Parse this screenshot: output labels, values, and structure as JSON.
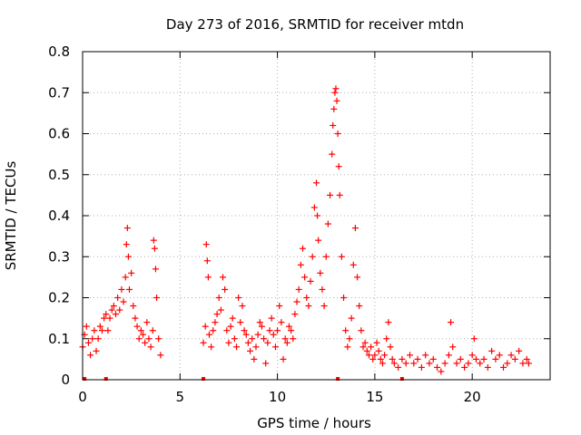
{
  "chart_data": {
    "type": "scatter",
    "title": "Day 273 of 2016, SRMTID for receiver mtdn",
    "xlabel": "GPS time / hours",
    "ylabel": "SRMTID / TECUs",
    "xlim": [
      0,
      24
    ],
    "ylim": [
      0,
      0.8
    ],
    "xticks": [
      0,
      5,
      10,
      15,
      20
    ],
    "yticks": [
      0,
      0.1,
      0.2,
      0.3,
      0.4,
      0.5,
      0.6,
      0.7,
      0.8
    ],
    "xtick_labels": [
      "0",
      "5",
      "10",
      "15",
      "20"
    ],
    "ytick_labels": [
      "0",
      "0.1",
      "0.2",
      "0.3",
      "0.4",
      "0.5",
      "0.6",
      "0.7",
      "0.8"
    ],
    "grid": true,
    "marker": "+",
    "marker_color": "#ff0000",
    "series": [
      {
        "name": "SRMTID",
        "points": [
          [
            0.0,
            0.08
          ],
          [
            0.1,
            0.11
          ],
          [
            0.2,
            0.13
          ],
          [
            0.3,
            0.09
          ],
          [
            0.4,
            0.06
          ],
          [
            0.5,
            0.1
          ],
          [
            0.6,
            0.12
          ],
          [
            0.7,
            0.07
          ],
          [
            0.8,
            0.1
          ],
          [
            0.9,
            0.13
          ],
          [
            1.0,
            0.12
          ],
          [
            1.1,
            0.15
          ],
          [
            1.2,
            0.16
          ],
          [
            1.3,
            0.12
          ],
          [
            1.4,
            0.15
          ],
          [
            1.5,
            0.17
          ],
          [
            1.6,
            0.18
          ],
          [
            1.7,
            0.16
          ],
          [
            1.8,
            0.2
          ],
          [
            1.9,
            0.17
          ],
          [
            2.0,
            0.22
          ],
          [
            2.1,
            0.19
          ],
          [
            2.2,
            0.25
          ],
          [
            2.25,
            0.33
          ],
          [
            2.3,
            0.37
          ],
          [
            2.35,
            0.3
          ],
          [
            2.4,
            0.22
          ],
          [
            2.5,
            0.26
          ],
          [
            2.6,
            0.18
          ],
          [
            2.7,
            0.15
          ],
          [
            2.8,
            0.13
          ],
          [
            2.9,
            0.1
          ],
          [
            3.0,
            0.12
          ],
          [
            3.1,
            0.11
          ],
          [
            3.2,
            0.09
          ],
          [
            3.3,
            0.14
          ],
          [
            3.4,
            0.1
          ],
          [
            3.5,
            0.08
          ],
          [
            3.6,
            0.12
          ],
          [
            3.65,
            0.34
          ],
          [
            3.7,
            0.32
          ],
          [
            3.75,
            0.27
          ],
          [
            3.8,
            0.2
          ],
          [
            3.9,
            0.1
          ],
          [
            4.0,
            0.06
          ],
          [
            6.2,
            0.09
          ],
          [
            6.3,
            0.13
          ],
          [
            6.35,
            0.33
          ],
          [
            6.4,
            0.29
          ],
          [
            6.45,
            0.25
          ],
          [
            6.5,
            0.11
          ],
          [
            6.6,
            0.08
          ],
          [
            6.7,
            0.12
          ],
          [
            6.8,
            0.14
          ],
          [
            6.9,
            0.16
          ],
          [
            7.0,
            0.2
          ],
          [
            7.1,
            0.17
          ],
          [
            7.2,
            0.25
          ],
          [
            7.3,
            0.22
          ],
          [
            7.4,
            0.12
          ],
          [
            7.5,
            0.09
          ],
          [
            7.6,
            0.13
          ],
          [
            7.7,
            0.15
          ],
          [
            7.8,
            0.1
          ],
          [
            7.9,
            0.08
          ],
          [
            8.0,
            0.2
          ],
          [
            8.1,
            0.14
          ],
          [
            8.2,
            0.18
          ],
          [
            8.3,
            0.12
          ],
          [
            8.4,
            0.11
          ],
          [
            8.5,
            0.09
          ],
          [
            8.6,
            0.07
          ],
          [
            8.7,
            0.1
          ],
          [
            8.8,
            0.05
          ],
          [
            8.9,
            0.08
          ],
          [
            9.0,
            0.11
          ],
          [
            9.1,
            0.14
          ],
          [
            9.2,
            0.13
          ],
          [
            9.3,
            0.1
          ],
          [
            9.4,
            0.04
          ],
          [
            9.5,
            0.09
          ],
          [
            9.6,
            0.12
          ],
          [
            9.7,
            0.15
          ],
          [
            9.8,
            0.11
          ],
          [
            9.9,
            0.08
          ],
          [
            10.0,
            0.12
          ],
          [
            10.1,
            0.18
          ],
          [
            10.2,
            0.14
          ],
          [
            10.3,
            0.05
          ],
          [
            10.4,
            0.1
          ],
          [
            10.5,
            0.09
          ],
          [
            10.6,
            0.13
          ],
          [
            10.7,
            0.12
          ],
          [
            10.8,
            0.1
          ],
          [
            10.9,
            0.16
          ],
          [
            11.0,
            0.19
          ],
          [
            11.1,
            0.22
          ],
          [
            11.2,
            0.28
          ],
          [
            11.3,
            0.32
          ],
          [
            11.4,
            0.25
          ],
          [
            11.5,
            0.2
          ],
          [
            11.6,
            0.18
          ],
          [
            11.7,
            0.24
          ],
          [
            11.8,
            0.3
          ],
          [
            11.9,
            0.42
          ],
          [
            12.0,
            0.48
          ],
          [
            12.05,
            0.4
          ],
          [
            12.1,
            0.34
          ],
          [
            12.2,
            0.26
          ],
          [
            12.3,
            0.22
          ],
          [
            12.4,
            0.18
          ],
          [
            12.5,
            0.3
          ],
          [
            12.6,
            0.38
          ],
          [
            12.7,
            0.45
          ],
          [
            12.8,
            0.55
          ],
          [
            12.85,
            0.62
          ],
          [
            12.9,
            0.66
          ],
          [
            12.95,
            0.7
          ],
          [
            13.0,
            0.71
          ],
          [
            13.05,
            0.68
          ],
          [
            13.1,
            0.6
          ],
          [
            13.15,
            0.52
          ],
          [
            13.2,
            0.45
          ],
          [
            13.3,
            0.3
          ],
          [
            13.4,
            0.2
          ],
          [
            13.5,
            0.12
          ],
          [
            13.6,
            0.08
          ],
          [
            13.7,
            0.1
          ],
          [
            13.8,
            0.15
          ],
          [
            13.9,
            0.28
          ],
          [
            14.0,
            0.37
          ],
          [
            14.1,
            0.25
          ],
          [
            14.2,
            0.18
          ],
          [
            14.3,
            0.12
          ],
          [
            14.4,
            0.08
          ],
          [
            14.5,
            0.09
          ],
          [
            14.6,
            0.07
          ],
          [
            14.7,
            0.06
          ],
          [
            14.8,
            0.08
          ],
          [
            14.9,
            0.05
          ],
          [
            15.0,
            0.06
          ],
          [
            15.1,
            0.09
          ],
          [
            15.2,
            0.07
          ],
          [
            15.3,
            0.05
          ],
          [
            15.4,
            0.04
          ],
          [
            15.5,
            0.06
          ],
          [
            15.6,
            0.1
          ],
          [
            15.7,
            0.14
          ],
          [
            15.8,
            0.08
          ],
          [
            15.9,
            0.05
          ],
          [
            16.0,
            0.04
          ],
          [
            16.2,
            0.03
          ],
          [
            16.4,
            0.05
          ],
          [
            16.6,
            0.04
          ],
          [
            16.8,
            0.06
          ],
          [
            17.0,
            0.04
          ],
          [
            17.2,
            0.05
          ],
          [
            17.4,
            0.03
          ],
          [
            17.6,
            0.06
          ],
          [
            17.8,
            0.04
          ],
          [
            18.0,
            0.05
          ],
          [
            18.2,
            0.03
          ],
          [
            18.4,
            0.02
          ],
          [
            18.6,
            0.04
          ],
          [
            18.8,
            0.06
          ],
          [
            18.9,
            0.14
          ],
          [
            19.0,
            0.08
          ],
          [
            19.2,
            0.04
          ],
          [
            19.4,
            0.05
          ],
          [
            19.6,
            0.03
          ],
          [
            19.8,
            0.04
          ],
          [
            20.0,
            0.06
          ],
          [
            20.1,
            0.1
          ],
          [
            20.2,
            0.05
          ],
          [
            20.4,
            0.04
          ],
          [
            20.6,
            0.05
          ],
          [
            20.8,
            0.03
          ],
          [
            21.0,
            0.07
          ],
          [
            21.2,
            0.05
          ],
          [
            21.4,
            0.06
          ],
          [
            21.6,
            0.03
          ],
          [
            21.8,
            0.04
          ],
          [
            22.0,
            0.06
          ],
          [
            22.2,
            0.05
          ],
          [
            22.4,
            0.07
          ],
          [
            22.6,
            0.04
          ],
          [
            22.8,
            0.05
          ],
          [
            22.9,
            0.04
          ]
        ]
      }
    ],
    "zero_markers_x": [
      0.1,
      1.2,
      6.2,
      13.1,
      16.4
    ]
  }
}
